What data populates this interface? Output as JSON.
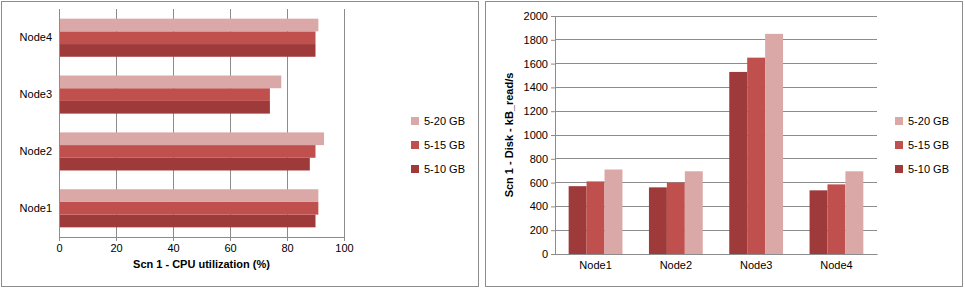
{
  "chart_data": [
    {
      "type": "bar",
      "orientation": "horizontal",
      "x_label": "Scn 1 - CPU utilization (%)",
      "categories": [
        "Node1",
        "Node2",
        "Node3",
        "Node4"
      ],
      "series": [
        {
          "name": "5-10 GB",
          "color": "#9e3a3a",
          "values": [
            90,
            88,
            74,
            90
          ]
        },
        {
          "name": "5-15 GB",
          "color": "#c0504d",
          "values": [
            91,
            90,
            74,
            90
          ]
        },
        {
          "name": "5-20 GB",
          "color": "#dba8a8",
          "values": [
            91,
            93,
            78,
            91
          ]
        }
      ],
      "xlim": [
        0,
        100
      ],
      "xticks": [
        0,
        20,
        40,
        60,
        80,
        100
      ],
      "grid": true,
      "legend": "right"
    },
    {
      "type": "bar",
      "y_label": "Scn 1 - Disk - kB_read/s",
      "categories": [
        "Node1",
        "Node2",
        "Node3",
        "Node4"
      ],
      "series": [
        {
          "name": "5-10 GB",
          "color": "#9e3a3a",
          "values": [
            570,
            560,
            1530,
            535
          ]
        },
        {
          "name": "5-15 GB",
          "color": "#c0504d",
          "values": [
            610,
            600,
            1650,
            585
          ]
        },
        {
          "name": "5-20 GB",
          "color": "#dba8a8",
          "values": [
            710,
            695,
            1850,
            695
          ]
        }
      ],
      "ylim": [
        0,
        2000
      ],
      "yticks": [
        0,
        200,
        400,
        600,
        800,
        1000,
        1200,
        1400,
        1600,
        1800,
        2000
      ],
      "grid": true,
      "legend": "right"
    }
  ]
}
